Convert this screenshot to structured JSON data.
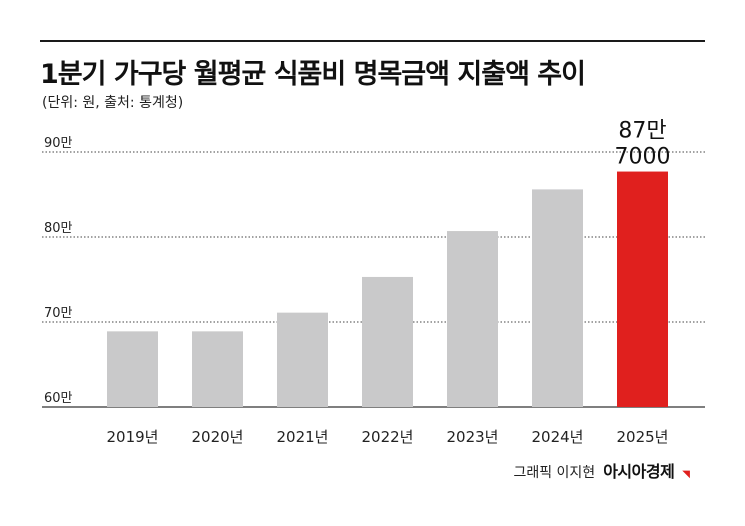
{
  "title": "1분기 가구당 월평균 식품비 명목금액 지출액 추이",
  "subtitle": "(단위: 원, 출처: 통계청)",
  "credit": {
    "byline": "그래픽 이지현",
    "brand": "아시아경제"
  },
  "colors": {
    "bar": "#c9c9ca",
    "highlight": "#e0201e",
    "grid": "#444444",
    "text": "#222222"
  },
  "chart_data": {
    "type": "bar",
    "title": "1분기 가구당 월평균 식품비 명목금액 지출액 추이",
    "xlabel": "",
    "ylabel": "",
    "categories": [
      "2019년",
      "2020년",
      "2021년",
      "2022년",
      "2023년",
      "2024년",
      "2025년"
    ],
    "values": [
      689000,
      689000,
      711000,
      753000,
      807000,
      856000,
      877000
    ],
    "ylim": [
      600000,
      900000
    ],
    "yticks": [
      600000,
      700000,
      800000,
      900000
    ],
    "ytick_labels": [
      "60만",
      "70만",
      "80만",
      "90만"
    ],
    "highlight_index": 6,
    "annotation_lines": [
      "87만",
      "7000"
    ],
    "grid": true,
    "legend": "none"
  }
}
